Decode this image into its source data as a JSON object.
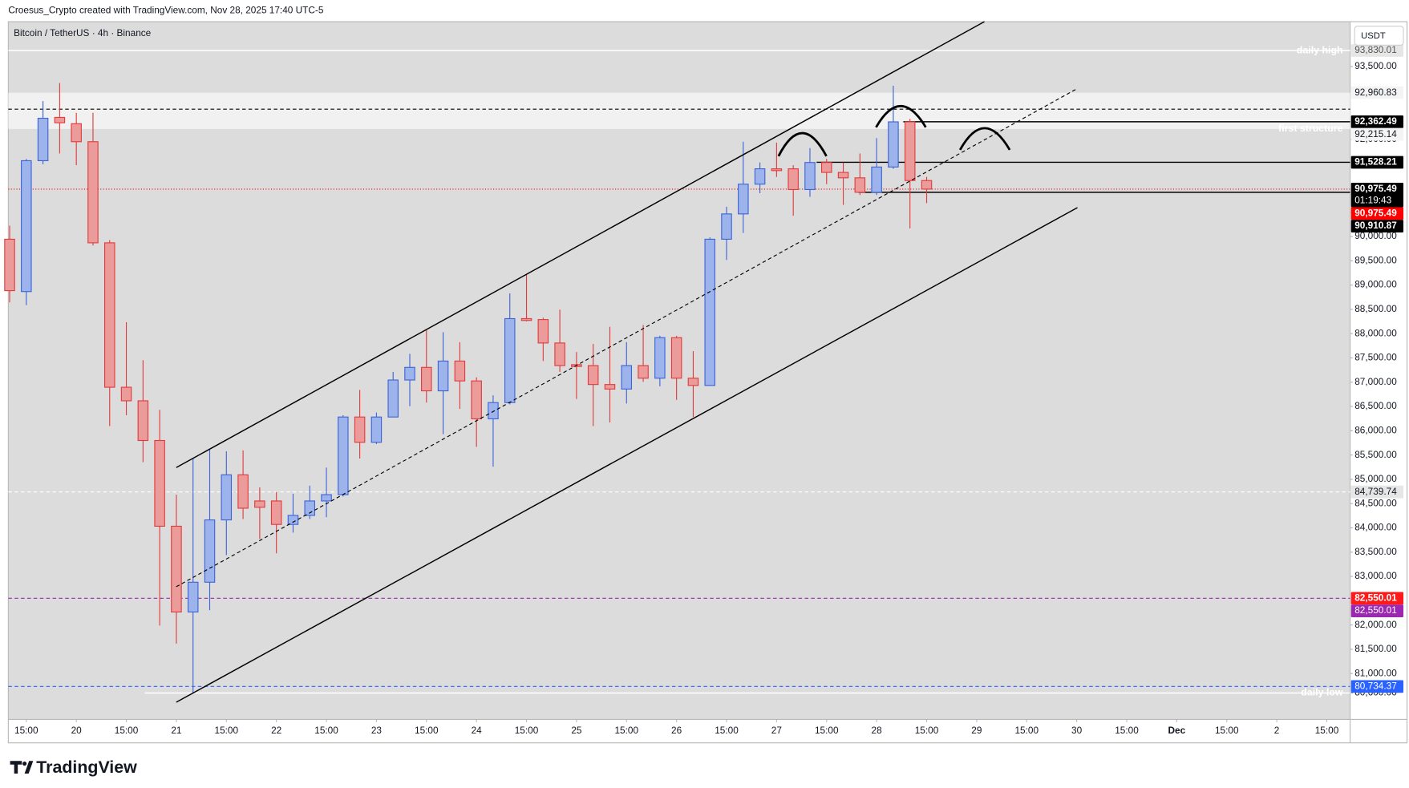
{
  "chart_data": {
    "type": "candlestick",
    "header": "Croesus_Crypto created with TradingView.com, Nov 28, 2025 17:40 UTC-5",
    "title": "Bitcoin / TetherUS · 4h · Binance",
    "currency": "USDT",
    "brand": "TradingView",
    "x": [
      0,
      1,
      2,
      3,
      4,
      5,
      6,
      7,
      8,
      9,
      10,
      11,
      12,
      13,
      14,
      15,
      16,
      17,
      18,
      19,
      20,
      21,
      22,
      23,
      24,
      25,
      26,
      27,
      28,
      29,
      30,
      31,
      32,
      33,
      34,
      35,
      36,
      37,
      38,
      39,
      40,
      41,
      42,
      43,
      44,
      45,
      46,
      47,
      48,
      49,
      50,
      51,
      52,
      53,
      54,
      55
    ],
    "open": [
      89944,
      88866,
      91561,
      92453,
      92323,
      91952,
      89870,
      86896,
      86617,
      85799,
      84034,
      82268,
      82881,
      84164,
      85093,
      84554,
      84554,
      84071,
      84257,
      84554,
      84684,
      86283,
      85762,
      86283,
      87045,
      87305,
      86822,
      87435,
      87026,
      86245,
      86580,
      88309,
      88290,
      87807,
      87361,
      87342,
      86952,
      86859,
      87342,
      87082,
      87918,
      87082,
      86933,
      89944,
      90465,
      91078,
      91394,
      91394,
      90967,
      91524,
      91320,
      91208,
      90911,
      91431,
      92361,
      91152
    ],
    "high": [
      90223,
      91598,
      92788,
      93160,
      92546,
      92546,
      89926,
      88234,
      87454,
      86431,
      84684,
      85428,
      85614,
      85576,
      85595,
      84833,
      84740,
      84703,
      84870,
      85242,
      86320,
      86840,
      86376,
      87212,
      87584,
      88086,
      88030,
      87825,
      87100,
      86729,
      88829,
      89219,
      88327,
      88494,
      87621,
      87788,
      88141,
      87825,
      88178,
      87955,
      87955,
      87639,
      89981,
      90613,
      91952,
      91524,
      91933,
      91468,
      91821,
      91598,
      91524,
      91710,
      92026,
      93104,
      92420,
      91227
    ],
    "low": [
      88643,
      88587,
      91487,
      91710,
      91468,
      89814,
      86097,
      86320,
      85353,
      81989,
      81617,
      80600,
      82305,
      83439,
      84182,
      83773,
      83476,
      83903,
      84182,
      84220,
      84647,
      85428,
      85725,
      86283,
      86506,
      86580,
      85929,
      86450,
      85669,
      85260,
      86543,
      88253,
      87435,
      87212,
      86654,
      86097,
      86171,
      86561,
      87007,
      86915,
      86636,
      86283,
      86933,
      89517,
      90074,
      90892,
      91227,
      90427,
      90818,
      91078,
      90651,
      90855,
      90855,
      91394,
      90167,
      90688
    ],
    "close": [
      88885,
      91561,
      92435,
      92342,
      91952,
      89870,
      86896,
      86617,
      85799,
      84034,
      82268,
      82881,
      84164,
      85093,
      84405,
      84424,
      84071,
      84257,
      84554,
      84684,
      86283,
      85762,
      86283,
      87045,
      87305,
      86822,
      87435,
      87026,
      86245,
      86580,
      88309,
      88271,
      87807,
      87342,
      87323,
      86952,
      86859,
      87342,
      87082,
      87918,
      87082,
      86933,
      89944,
      90465,
      91078,
      91394,
      91357,
      90967,
      91524,
      91320,
      91208,
      90911,
      91431,
      92361,
      91152,
      90975.49
    ],
    "up_color": "#3d64d8",
    "up_fill": "#9db3ec",
    "down_color": "#e23b3b",
    "down_fill": "#ec9b9b",
    "xlim": [
      -0.08,
      80.4
    ],
    "xticks": [
      {
        "value": 1,
        "label": "15:00"
      },
      {
        "value": 4,
        "label": "20"
      },
      {
        "value": 7,
        "label": "15:00"
      },
      {
        "value": 10,
        "label": "21"
      },
      {
        "value": 13,
        "label": "15:00"
      },
      {
        "value": 16,
        "label": "22"
      },
      {
        "value": 19,
        "label": "15:00"
      },
      {
        "value": 22,
        "label": "23"
      },
      {
        "value": 25,
        "label": "15:00"
      },
      {
        "value": 28,
        "label": "24"
      },
      {
        "value": 31,
        "label": "15:00"
      },
      {
        "value": 34,
        "label": "25"
      },
      {
        "value": 37,
        "label": "15:00"
      },
      {
        "value": 40,
        "label": "26"
      },
      {
        "value": 43,
        "label": "15:00"
      },
      {
        "value": 46,
        "label": "27"
      },
      {
        "value": 49,
        "label": "15:00"
      },
      {
        "value": 52,
        "label": "28"
      },
      {
        "value": 55,
        "label": "15:00"
      },
      {
        "value": 58,
        "label": "29"
      },
      {
        "value": 61,
        "label": "15:00"
      },
      {
        "value": 64,
        "label": "30"
      },
      {
        "value": 67,
        "label": "15:00"
      },
      {
        "value": 70,
        "label": "Dec"
      },
      {
        "value": 73,
        "label": "15:00"
      },
      {
        "value": 76,
        "label": "2"
      },
      {
        "value": 79,
        "label": "15:00"
      }
    ],
    "ylim": [
      80056,
      94424
    ],
    "yticks": [
      {
        "value": 80600,
        "label": "80,600.00"
      },
      {
        "value": 81000,
        "label": "81,000.00"
      },
      {
        "value": 81500,
        "label": "81,500.00"
      },
      {
        "value": 82000,
        "label": "82,000.00"
      },
      {
        "value": 83000,
        "label": "83,000.00"
      },
      {
        "value": 83500,
        "label": "83,500.00"
      },
      {
        "value": 84000,
        "label": "84,000.00"
      },
      {
        "value": 84500,
        "label": "84,500.00"
      },
      {
        "value": 85000,
        "label": "85,000.00"
      },
      {
        "value": 85500,
        "label": "85,500.00"
      },
      {
        "value": 86000,
        "label": "86,000.00"
      },
      {
        "value": 86500,
        "label": "86,500.00"
      },
      {
        "value": 87000,
        "label": "87,000.00"
      },
      {
        "value": 87500,
        "label": "87,500.00"
      },
      {
        "value": 88000,
        "label": "88,000.00"
      },
      {
        "value": 88500,
        "label": "88,500.00"
      },
      {
        "value": 89000,
        "label": "89,000.00"
      },
      {
        "value": 89500,
        "label": "89,500.00"
      },
      {
        "value": 90000,
        "label": "90,000.00"
      },
      {
        "value": 90500,
        "label": "90,500.00"
      },
      {
        "value": 92000,
        "label": "92,000.00"
      },
      {
        "value": 93500,
        "label": "93,500.00"
      }
    ],
    "grid": false,
    "zone": {
      "values": [
        92215.14,
        92960.83
      ],
      "color": "#f4f4f4",
      "text": "first structure"
    },
    "levels": [
      {
        "value": 93830.01,
        "label": "93,830.01",
        "text": "daily high",
        "line": "solid",
        "color": "#ffffff",
        "label_bg": "#e6e6e6",
        "label_color": "#555555"
      },
      {
        "value": 92960.83,
        "label": "92,960.83",
        "line": "none",
        "color": "#ffffff",
        "label_bg": "#f4f4f4",
        "label_color": "#131722"
      },
      {
        "value": 92362.49,
        "label": "92,362.49",
        "line": "solid",
        "color": "#000000",
        "start": 53.6,
        "label_bg": "#000000",
        "label_color": "#ffffff"
      },
      {
        "value": 92215.14,
        "label": "92,215.14",
        "line": "none",
        "color": "#ffffff",
        "label_bg": "#f4f4f4",
        "label_color": "#131722"
      },
      {
        "value": 91528.21,
        "label": "91,528.21",
        "line": "solid",
        "color": "#000000",
        "start": 48.4,
        "label_bg": "#000000",
        "label_color": "#ffffff"
      },
      {
        "value": 90975.49,
        "label": "90,975.49",
        "countdown": "01:19:43",
        "line": "none",
        "color": "#000000",
        "label_bg": "#000000",
        "label_color": "#ffffff"
      },
      {
        "value": 90975.49,
        "label": "90,975.49",
        "line": "dotted",
        "color": "#ff0000",
        "label_bg": "#ff0000",
        "label_color": "#ffffff"
      },
      {
        "value": 90910.87,
        "label": "90,910.87",
        "line": "solid",
        "color": "#000000",
        "start": 50.9,
        "label_bg": "#000000",
        "label_color": "#ffffff"
      },
      {
        "value": 84739.74,
        "label": "84,739.74",
        "line": "dashed",
        "color": "#ffffff",
        "label_bg": "#e6e6e6",
        "label_color": "#131722"
      },
      {
        "value": 82550.01,
        "label": "82,550.01",
        "line": "none",
        "color": "#ff0000",
        "label_bg": "#ff1a1a",
        "label_color": "#ffffff"
      },
      {
        "value": 82550.01,
        "label": "82,550.01",
        "line": "dashed",
        "color": "#9c27b0",
        "label_bg": "#9c27b0",
        "label_color": "#ffffff"
      },
      {
        "value": 80734.37,
        "label": "80,734.37",
        "line": "dashed",
        "color": "#2962ff",
        "label_bg": "#2962ff",
        "label_color": "#ffffff"
      },
      {
        "value": 80600,
        "text": "daily low",
        "line": "solid",
        "color": "#ffffff",
        "start": 8.1
      }
    ]
  }
}
